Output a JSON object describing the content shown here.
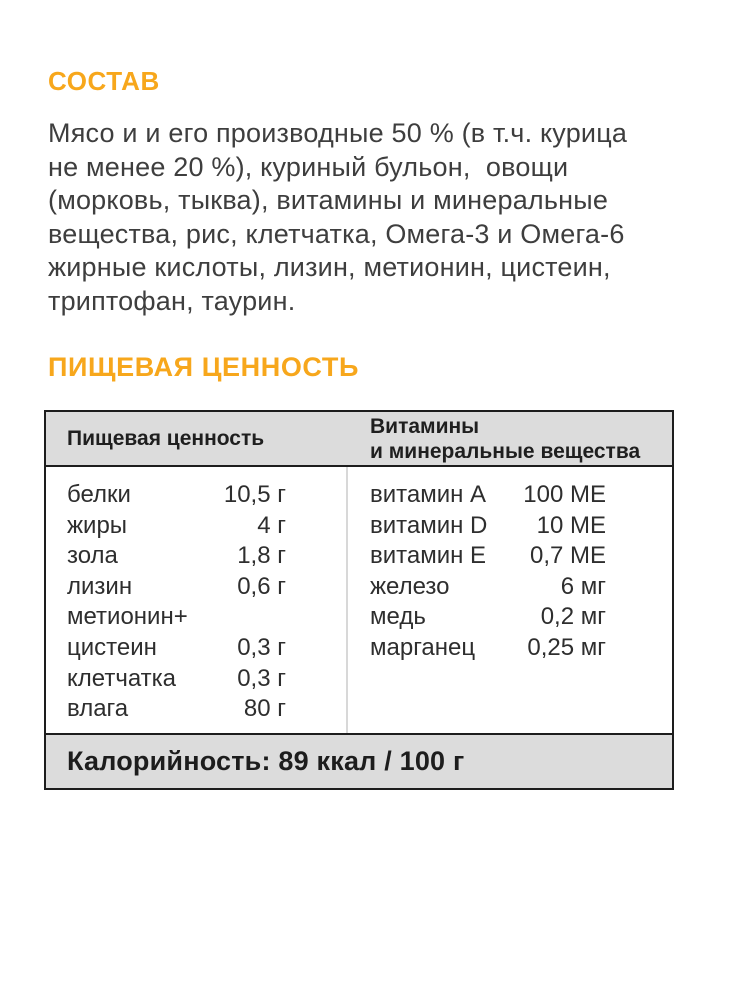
{
  "colors": {
    "accent": "#F7A71C",
    "body_text": "#3E3E3E",
    "table_text": "#2E2E2E",
    "table_border": "#1D1D1D",
    "table_band_bg": "#DCDCDC",
    "column_divider": "#D8D8D8",
    "page_bg": "#FFFFFF"
  },
  "composition": {
    "heading": "СОСТАВ",
    "lines": [
      "Мясо и и его производные 50 % (в т.ч. курица",
      "не менее 20 %), куриный бульон,  овощи",
      "(морковь, тыква), витамины и минеральные",
      "вещества, рис, клетчатка, Омега-3 и Омега-6",
      "жирные кислоты, лизин, метионин, цистеин,",
      "триптофан, таурин."
    ]
  },
  "nutrition": {
    "heading": "ПИЩЕВАЯ ЦЕННОСТЬ",
    "table": {
      "left_header": "Пищевая ценность",
      "right_header_line1": "Витамины",
      "right_header_line2": "и минеральные вещества",
      "nutrients": [
        {
          "label": "белки",
          "value": "10,5 г"
        },
        {
          "label": "жиры",
          "value": "4 г"
        },
        {
          "label": "зола",
          "value": "1,8 г"
        },
        {
          "label": "лизин",
          "value": "0,6 г"
        },
        {
          "label": "метионин+",
          "value": ""
        },
        {
          "label": "цистеин",
          "value": "0,3 г"
        },
        {
          "label": "клетчатка",
          "value": "0,3 г"
        },
        {
          "label": "влага",
          "value": "80 г"
        }
      ],
      "vitamins": [
        {
          "label": "витамин A",
          "value": "100 МЕ"
        },
        {
          "label": "витамин D",
          "value": "10 МЕ"
        },
        {
          "label": "витамин E",
          "value": "0,7 МЕ"
        },
        {
          "label": "железо",
          "value": "6 мг"
        },
        {
          "label": "медь",
          "value": "0,2 мг"
        },
        {
          "label": "марганец",
          "value": "0,25 мг"
        }
      ],
      "calories": "Калорийность: 89 ккал / 100 г"
    }
  }
}
